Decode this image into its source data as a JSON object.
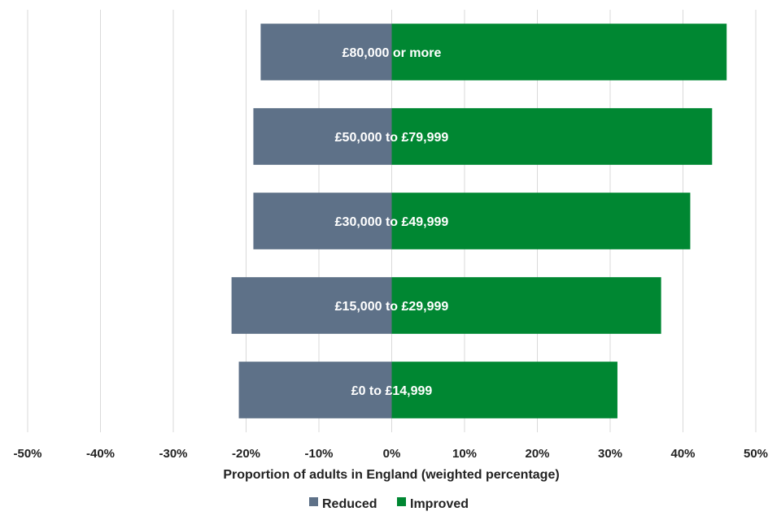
{
  "chart_data": {
    "type": "bar",
    "orientation": "horizontal",
    "stacked": "diverging",
    "categories": [
      "£80,000 or more",
      "£50,000 to £79,999",
      "£30,000 to £49,999",
      "£15,000 to £29,999",
      "£0 to £14,999"
    ],
    "series": [
      {
        "name": "Reduced",
        "color": "#5e7188",
        "values": [
          -18,
          -19,
          -19,
          -22,
          -21
        ]
      },
      {
        "name": "Improved",
        "color": "#008732",
        "values": [
          46,
          44,
          41,
          37,
          31
        ]
      }
    ],
    "xlim": [
      -50,
      50
    ],
    "xticks": [
      -50,
      -40,
      -30,
      -20,
      -10,
      0,
      10,
      20,
      30,
      40,
      50
    ],
    "xtick_labels": [
      "-50%",
      "-40%",
      "-30%",
      "-20%",
      "-10%",
      "0%",
      "10%",
      "20%",
      "30%",
      "40%",
      "50%"
    ],
    "xlabel": "Proportion of adults in England (weighted percentage)",
    "ylabel": "",
    "title": "",
    "grid": "vertical",
    "legend": {
      "position": "bottom",
      "entries": [
        "Reduced",
        "Improved"
      ]
    }
  }
}
